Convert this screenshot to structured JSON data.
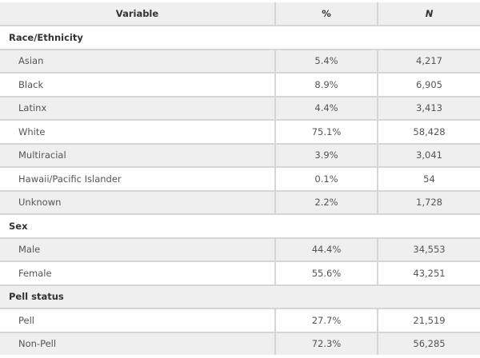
{
  "header": {
    "variable": "Variable",
    "percent": "%",
    "n": "N"
  },
  "groups": [
    {
      "label": "Race/Ethnicity",
      "rows": [
        {
          "label": "Asian",
          "percent": "5.4%",
          "n": "4,217"
        },
        {
          "label": "Black",
          "percent": "8.9%",
          "n": "6,905"
        },
        {
          "label": "Latinx",
          "percent": "4.4%",
          "n": "3,413"
        },
        {
          "label": "White",
          "percent": "75.1%",
          "n": "58,428"
        },
        {
          "label": "Multiracial",
          "percent": "3.9%",
          "n": "3,041"
        },
        {
          "label": "Hawaii/Pacific Islander",
          "percent": "0.1%",
          "n": "54"
        },
        {
          "label": "Unknown",
          "percent": "2.2%",
          "n": "1,728"
        }
      ]
    },
    {
      "label": "Sex",
      "rows": [
        {
          "label": "Male",
          "percent": "44.4%",
          "n": "34,553"
        },
        {
          "label": "Female",
          "percent": "55.6%",
          "n": "43,251"
        }
      ]
    },
    {
      "label": "Pell status",
      "rows": [
        {
          "label": "Pell",
          "percent": "27.7%",
          "n": "21,519"
        },
        {
          "label": "Non-Pell",
          "percent": "72.3%",
          "n": "56,285"
        }
      ]
    }
  ]
}
